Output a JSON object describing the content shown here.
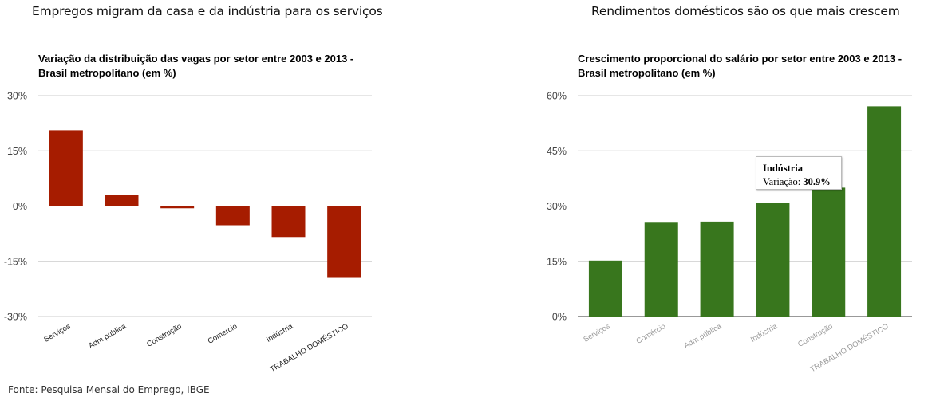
{
  "headlines": {
    "left": "Empregos migram da casa e da indústria para os serviços",
    "right": "Rendimentos domésticos são os que mais crescem"
  },
  "source": "Fonte: Pesquisa Mensal do Emprego, IBGE",
  "tooltip": {
    "title": "Indústria",
    "label": "Variação: ",
    "value": "30.9%"
  },
  "colors": {
    "left_bar": "#a61c00",
    "right_bar": "#38761d",
    "gridline": "#cccccc",
    "baseline": "#333333"
  },
  "chart_data": [
    {
      "type": "bar",
      "title": "Variação da distribuição das vagas por setor entre 2003 e 2013 - Brasil metropolitano (em %)",
      "xlabel": "",
      "ylabel": "",
      "categories": [
        "Serviços",
        "Adm pública",
        "Construção",
        "Comércio",
        "Indústria",
        "TRABALHO DOMÉSTICO"
      ],
      "values": [
        20.6,
        3.0,
        -0.6,
        -5.2,
        -8.4,
        -19.5
      ],
      "ylim": [
        -30,
        30
      ],
      "yticks": [
        30,
        15,
        0,
        -15,
        -30
      ],
      "ytick_labels": [
        "30%",
        "15%",
        "0%",
        "-15%",
        "-30%"
      ],
      "grid": true,
      "legend": "none"
    },
    {
      "type": "bar",
      "title": "Crescimento proporcional do salário por setor entre 2003 e 2013 - Brasil metropolitano (em %)",
      "xlabel": "",
      "ylabel": "",
      "categories": [
        "Serviços",
        "Comércio",
        "Adm pública",
        "Indústria",
        "Construção",
        "TRABALHO DOMÉSTICO"
      ],
      "values": [
        15.2,
        25.5,
        25.8,
        30.9,
        35.0,
        57.1
      ],
      "ylim": [
        0,
        60
      ],
      "yticks": [
        60,
        45,
        30,
        15,
        0
      ],
      "ytick_labels": [
        "60%",
        "45%",
        "30%",
        "15%",
        "0%"
      ],
      "grid": true,
      "legend": "none",
      "highlighted_category": "Indústria"
    }
  ]
}
